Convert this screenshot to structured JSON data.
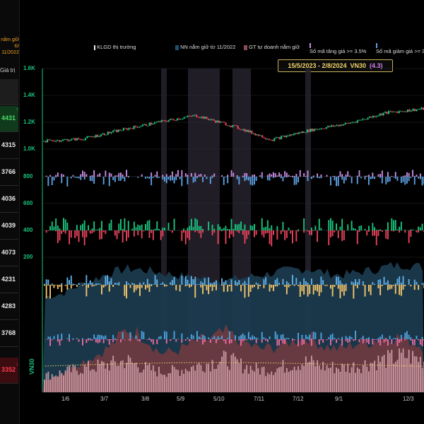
{
  "left_panel": {
    "header_line1": "năm giữ",
    "header_line2": "từ",
    "header_line3": "11/2022",
    "col_label": "Giá trị",
    "rows": [
      {
        "value": "",
        "color": "#cccccc",
        "bg": "#1d1d1d"
      },
      {
        "value": "4431",
        "color": "#4cd964",
        "bg": "#0f3b1c",
        "mark": "↑"
      },
      {
        "value": "4315",
        "color": "#e8e8e8",
        "bg": "#0a0a0a"
      },
      {
        "value": "3766",
        "color": "#e8e8e8",
        "bg": "#0a0a0a"
      },
      {
        "value": "4036",
        "color": "#e8e8e8",
        "bg": "#0a0a0a"
      },
      {
        "value": "4039",
        "color": "#e8e8e8",
        "bg": "#0a0a0a"
      },
      {
        "value": "4073",
        "color": "#e8e8e8",
        "bg": "#0a0a0a"
      },
      {
        "value": "4231",
        "color": "#e8e8e8",
        "bg": "#0a0a0a"
      },
      {
        "value": "4283",
        "color": "#e8e8e8",
        "bg": "#0a0a0a"
      },
      {
        "value": "3768",
        "color": "#e8e8e8",
        "bg": "#0a0a0a"
      },
      {
        "value": "3352",
        "color": "#ff3b4e",
        "bg": "#3b0c10",
        "mark": "↓"
      }
    ]
  },
  "legend": {
    "klgd": "KLGD thị trường",
    "nn": "NN nắm giữ từ 11/2022",
    "gt": "GT tự doanh nắm giữ",
    "so_tang": "Số mã tăng giá >= 3.5%",
    "so_giam": "Số mã giảm giá >= 3.5%"
  },
  "range_box": {
    "dates": "15/5/2023 - 2/8/2024",
    "index": "VN30",
    "pct": "(4.3)"
  },
  "side_label": "VN30",
  "colors": {
    "up": "#19c37d",
    "down": "#e8425b",
    "klgd": "#e0aeb6",
    "nn": "#1b3a4e",
    "gt": "#6e3a40",
    "tang": "#c78be0",
    "giam": "#5b9fe0",
    "axis": "#19c37d"
  },
  "chart_data": {
    "type": "line",
    "title": "",
    "y_ticks": [
      "1.6K",
      "1.4K",
      "1.2K",
      "1.0K",
      "800",
      "600",
      "400",
      "200"
    ],
    "x_ticks": [
      "1/6",
      "3/7",
      "3/8",
      "5/9",
      "5/10",
      "7/11",
      "7/12",
      "9/1",
      "12/3"
    ],
    "series": [
      {
        "name": "VN30",
        "x": [
          "15/5/2023",
          "1/6/2023",
          "3/7/2023",
          "3/8/2023",
          "5/9/2023",
          "5/10/2023",
          "7/11/2023",
          "7/12/2023",
          "9/1/2024",
          "12/3/2024",
          "2/8/2024"
        ],
        "values": [
          1060,
          1075,
          1140,
          1200,
          1250,
          1170,
          1070,
          1140,
          1190,
          1270,
          1300
        ]
      }
    ],
    "klgd_relative": [
      0.32,
      0.38,
      0.45,
      0.5,
      0.55,
      0.62,
      0.48,
      0.4,
      0.42,
      0.5,
      0.58,
      0.65,
      0.52,
      0.44,
      0.46,
      0.55,
      0.6,
      0.5,
      0.48,
      0.52,
      0.6,
      0.66,
      0.72,
      0.62
    ],
    "nn_relative": [
      0.72,
      0.74,
      0.8,
      0.85,
      0.9,
      0.93,
      0.92,
      0.9,
      0.88,
      0.86,
      0.85,
      0.84,
      0.86,
      0.88,
      0.9,
      0.92,
      0.93,
      0.9,
      0.88,
      0.9,
      0.92,
      0.95,
      0.96,
      0.94
    ],
    "gt_relative": [
      0.12,
      0.18,
      0.28,
      0.35,
      0.45,
      0.62,
      0.55,
      0.38,
      0.4,
      0.48,
      0.52,
      0.58,
      0.5,
      0.42,
      0.44,
      0.5,
      0.55,
      0.45,
      0.42,
      0.48,
      0.5,
      0.55,
      0.52,
      0.45
    ],
    "highlighted_periods": [
      [
        "Tháng 9/2023",
        "Tháng 10/2023"
      ],
      [
        "Tháng 11/2023"
      ]
    ]
  }
}
